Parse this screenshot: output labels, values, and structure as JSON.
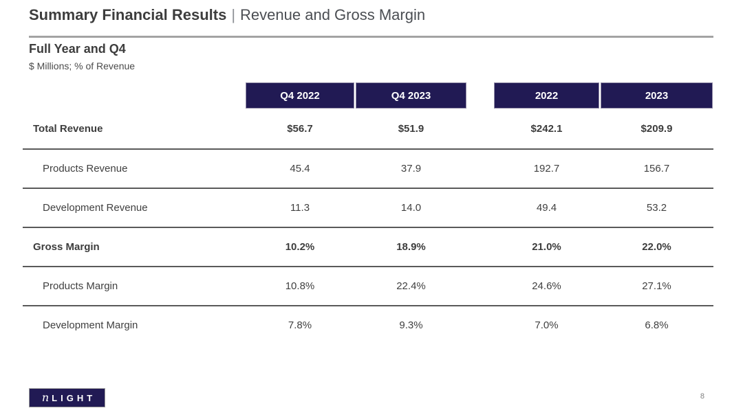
{
  "slide": {
    "title_bold": "Summary Financial Results",
    "title_separator": "|",
    "title_regular": "Revenue and Gross Margin",
    "subtitle": "Full Year and Q4",
    "units_note": "$ Millions; % of Revenue",
    "page_number": "8"
  },
  "logo": {
    "n": "n",
    "rest": "LIGHT"
  },
  "colors": {
    "brand_navy": "#211A54",
    "title_text": "#3D3D3D",
    "secondary_title_text": "#4B4E53",
    "rule_gray": "#A3A3A3",
    "row_line_gray": "#595959",
    "body_text": "#404040"
  },
  "table": {
    "columns": [
      "Q4 2022",
      "Q4 2023",
      "2022",
      "2023"
    ],
    "rows": [
      {
        "label": "Total Revenue",
        "values": [
          "$56.7",
          "$51.9",
          "$242.1",
          "$209.9"
        ]
      },
      {
        "label": "Products Revenue",
        "values": [
          "45.4",
          "37.9",
          "192.7",
          "156.7"
        ]
      },
      {
        "label": "Development Revenue",
        "values": [
          "11.3",
          "14.0",
          "49.4",
          "53.2"
        ]
      },
      {
        "label": "Gross Margin",
        "values": [
          "10.2%",
          "18.9%",
          "21.0%",
          "22.0%"
        ]
      },
      {
        "label": "Products Margin",
        "values": [
          "10.8%",
          "22.4%",
          "24.6%",
          "27.1%"
        ]
      },
      {
        "label": "Development Margin",
        "values": [
          "7.8%",
          "9.3%",
          "7.0%",
          "6.8%"
        ]
      }
    ]
  }
}
